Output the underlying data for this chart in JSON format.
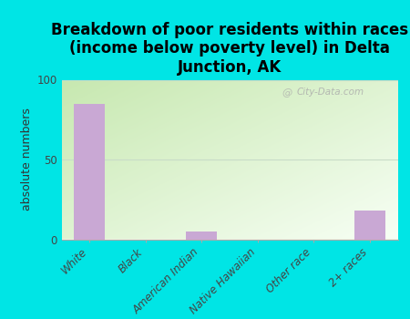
{
  "categories": [
    "White",
    "Black",
    "American Indian",
    "Native Hawaiian",
    "Other race",
    "2+ races"
  ],
  "values": [
    85,
    0,
    5,
    0,
    0,
    18
  ],
  "bar_color": "#c9a8d4",
  "title": "Breakdown of poor residents within races\n(income below poverty level) in Delta\nJunction, AK",
  "ylabel": "absolute numbers",
  "ylim": [
    0,
    100
  ],
  "yticks": [
    0,
    50,
    100
  ],
  "background_color": "#00e5e5",
  "watermark": "City-Data.com",
  "title_fontsize": 12,
  "ylabel_fontsize": 9,
  "tick_fontsize": 8.5,
  "grid_color": "#c8dcc8",
  "plot_bg_colors": [
    "#d4edcc",
    "#eaf5e0",
    "#f2faf0",
    "#fafff8"
  ]
}
